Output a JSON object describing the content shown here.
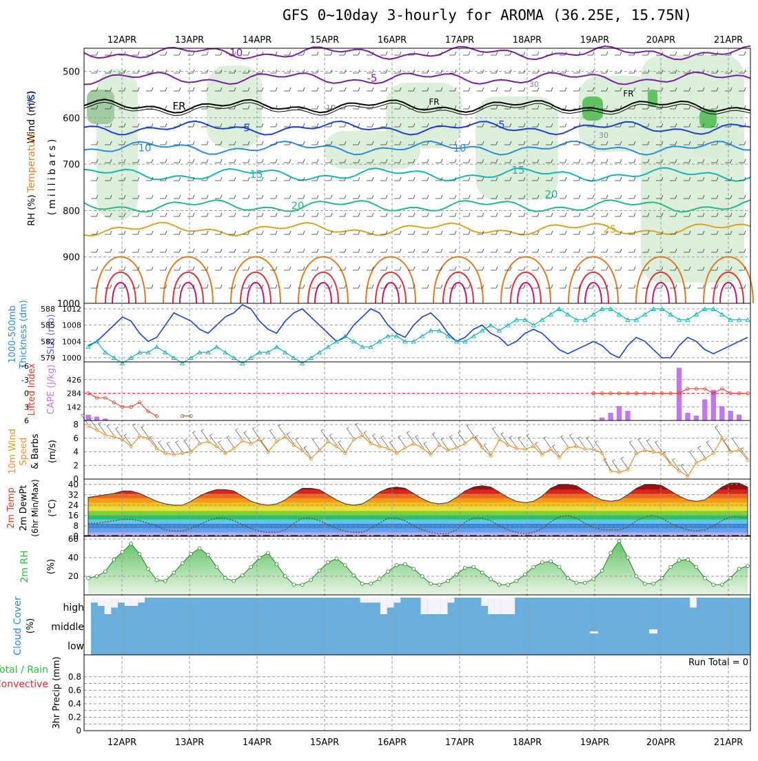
{
  "title": "GFS 0~10day 3-hourly for AROMA (36.25E, 15.75N)",
  "date_labels": [
    "12APR",
    "13APR",
    "14APR",
    "15APR",
    "16APR",
    "17APR",
    "18APR",
    "19APR",
    "20APR",
    "21APR"
  ],
  "colors": {
    "purple": "#7a1fa2",
    "black": "#000000",
    "blue_dark": "#1d3fd1",
    "blue_mid": "#2a8be0",
    "teal": "#12b5b5",
    "sea_green": "#1fb98a",
    "gold": "#d8a320",
    "orange": "#e07a20",
    "red": "#e03030",
    "crimson": "#d0105a",
    "rh_green": "#2bbf3b",
    "cloud_blue": "#6aaedb",
    "lifted_red": "#e03a2a",
    "cape_violet": "#c277f0",
    "wind_orange": "#e8922a",
    "grid": "#999999"
  },
  "chart_data": [
    {
      "type": "line",
      "panel": "upper_air",
      "title": "Temperature (°C) Wind (m/s) RH (%)",
      "ylabel": "(millibars)",
      "yaxis_ticks": [
        500,
        600,
        700,
        800,
        900,
        1000
      ],
      "ylim": [
        450,
        1000
      ],
      "axis_title_temperature": "Temperature",
      "axis_title_temperature_unit": "(°C)",
      "axis_title_wind": "Wind (m/s)",
      "axis_title_rh": "RH (%)",
      "axis_title_pressure": "(millibars)",
      "freezing_label": "FR",
      "rh_labels": [
        "10",
        "30",
        "30"
      ],
      "isotherms": [
        {
          "name": "-10",
          "label": "-10",
          "level_mb": 460
        },
        {
          "name": "-5",
          "label": "-5",
          "level_mb": 515
        },
        {
          "name": "FR",
          "label": "FR",
          "level_mb": 575
        },
        {
          "name": "5",
          "label": "5",
          "level_mb": 622
        },
        {
          "name": "10",
          "label": "10",
          "level_mb": 665
        },
        {
          "name": "15",
          "label": "15",
          "level_mb": 722
        },
        {
          "name": "20",
          "label": "20",
          "level_mb": 790
        },
        {
          "name": "25",
          "label": "25",
          "level_mb": 840
        }
      ]
    },
    {
      "type": "line",
      "panel": "thickness_slp",
      "ylabel_left": "1000-500mb Thickness (dm)",
      "ylabel_right": "SLP (mb)",
      "thickness_ticks": [
        579,
        582,
        585,
        588
      ],
      "slp_ticks": [
        1000,
        1004,
        1008,
        1012
      ],
      "slp_label": "SLP (mb)",
      "thickness_label_line1": "1000-500mb",
      "thickness_label_line2": "Thickness (dm)",
      "slp": [
        1003,
        1004,
        1006,
        1008,
        1010,
        1009,
        1006,
        1004,
        1005,
        1008,
        1011,
        1010,
        1009,
        1007,
        1006,
        1008,
        1010,
        1011,
        1013,
        1012,
        1009,
        1007,
        1006,
        1009,
        1011,
        1012,
        1010,
        1008,
        1006,
        1004,
        1005,
        1008,
        1010,
        1012,
        1011,
        1008,
        1006,
        1005,
        1008,
        1010,
        1011,
        1009,
        1006,
        1004,
        1005,
        1007,
        1008,
        1006,
        1005,
        1003,
        1004,
        1006,
        1007,
        1006,
        1004,
        1002,
        1001,
        1002,
        1003,
        1004,
        1003,
        1001,
        1000,
        1003,
        1005,
        1004,
        1002,
        1000,
        1000,
        1003,
        1005,
        1004,
        1002,
        1001,
        1002,
        1003,
        1004,
        1005
      ],
      "thickness": [
        581,
        582,
        580,
        579,
        578,
        579,
        580,
        580,
        581,
        580,
        579,
        578,
        579,
        580,
        580,
        581,
        580,
        579,
        578,
        579,
        580,
        580,
        581,
        580,
        579,
        578,
        579,
        580,
        581,
        582,
        583,
        582,
        581,
        581,
        582,
        583,
        583,
        582,
        582,
        583,
        584,
        584,
        583,
        582,
        582,
        583,
        584,
        585,
        584,
        585,
        586,
        586,
        585,
        586,
        587,
        588,
        587,
        586,
        586,
        587,
        588,
        588,
        587,
        586,
        586,
        587,
        588,
        588,
        587,
        586,
        586,
        587,
        588,
        588,
        587,
        586,
        586,
        586
      ]
    },
    {
      "type": "bar",
      "panel": "cape_lifted",
      "ylabel_left": "Lifted Index",
      "ylabel_right": "CAPE (J/kg)",
      "lifted_ticks": [
        "-6",
        "-3",
        "0",
        "3",
        "6"
      ],
      "cape_ticks": [
        142,
        284,
        426
      ],
      "lifted_label": "Lifted Index",
      "cape_label": "CAPE (J/kg)",
      "cape": [
        60,
        40,
        20,
        0,
        0,
        0,
        0,
        0,
        0,
        0,
        0,
        0,
        0,
        0,
        0,
        0,
        0,
        0,
        0,
        0,
        0,
        0,
        0,
        0,
        0,
        0,
        0,
        0,
        0,
        0,
        0,
        0,
        0,
        0,
        0,
        0,
        0,
        0,
        0,
        0,
        0,
        0,
        0,
        0,
        0,
        0,
        0,
        0,
        0,
        0,
        0,
        0,
        0,
        0,
        0,
        0,
        0,
        0,
        0,
        10,
        30,
        80,
        150,
        100,
        0,
        0,
        0,
        0,
        0,
        550,
        80,
        50,
        220,
        320,
        150,
        100,
        60,
        0
      ],
      "lifted": [
        0,
        1,
        1,
        2,
        3,
        3,
        2,
        4,
        5,
        6,
        6,
        5,
        5,
        6,
        6,
        6,
        6,
        6,
        6,
        6,
        6,
        6,
        6,
        6,
        6,
        6,
        6,
        6,
        6,
        6,
        6,
        6,
        6,
        6,
        6,
        6,
        6,
        6,
        6,
        6,
        6,
        6,
        6,
        6,
        6,
        6,
        6,
        6,
        6,
        6,
        6,
        6,
        6,
        6,
        6,
        6,
        6,
        6,
        6,
        0,
        0,
        0,
        0,
        0,
        0,
        0,
        0,
        0,
        0,
        0,
        -1,
        -1,
        -1,
        0,
        -1,
        0,
        0,
        0
      ]
    },
    {
      "type": "line",
      "panel": "wind10m",
      "ylabel": "10m Wind Speed & Barbs (m/s)",
      "ylabel_line1": "10m Wind",
      "ylabel_line2": "Speed",
      "ylabel_line3": "& Barbs",
      "ylabel_unit": "(m/s)",
      "ylim": [
        0,
        8
      ],
      "yticks": [
        0,
        2,
        4,
        6,
        8
      ],
      "speed": [
        7.8,
        7.2,
        6.5,
        6.2,
        5.8,
        4.8,
        6.3,
        6.0,
        4.5,
        3.8,
        3.6,
        3.8,
        4.0,
        5.2,
        5.5,
        4.8,
        3.8,
        4.5,
        5.6,
        5.2,
        5.8,
        4.0,
        5.5,
        6.2,
        5.0,
        4.2,
        3.0,
        4.2,
        5.5,
        4.8,
        3.8,
        5.8,
        6.4,
        5.2,
        4.8,
        4.5,
        3.8,
        4.6,
        5.2,
        4.6,
        3.6,
        5.0,
        4.2,
        4.6,
        5.2,
        6.2,
        4.6,
        3.4,
        5.8,
        5.0,
        4.5,
        4.4,
        4.8,
        3.6,
        4.4,
        3.2,
        4.6,
        4.8,
        4.4,
        4.4,
        3.8,
        1.2,
        1.0,
        1.4,
        3.8,
        4.2,
        4.0,
        3.8,
        2.2,
        1.2,
        0.4,
        2.4,
        3.0,
        3.8,
        6.0,
        4.0,
        4.3,
        2.8
      ]
    },
    {
      "type": "area",
      "panel": "temp2m",
      "ylabel": "2m Temp 2m DewPt (6hr Min/Max) (°C)",
      "ylabel_line1": "2m Temp",
      "ylabel_line2": "2m DewPt",
      "ylabel_line3": "(6hr Min/Max)",
      "ylabel_unit": "(°C)",
      "ylim": [
        0,
        42
      ],
      "yticks": [
        0,
        8,
        16,
        24,
        32,
        40
      ],
      "temp": [
        30,
        31,
        32,
        33,
        35,
        35,
        33,
        30,
        27,
        25,
        24,
        24,
        27,
        31,
        34,
        36,
        36,
        35,
        31,
        27,
        25,
        24,
        25,
        28,
        33,
        37,
        37,
        36,
        32,
        28,
        25,
        24,
        25,
        29,
        34,
        37,
        38,
        37,
        33,
        29,
        26,
        25,
        26,
        30,
        35,
        38,
        39,
        38,
        34,
        30,
        27,
        26,
        27,
        31,
        37,
        40,
        40,
        39,
        35,
        31,
        28,
        27,
        28,
        32,
        37,
        40,
        40,
        39,
        35,
        31,
        28,
        27,
        28,
        33,
        38,
        41,
        41,
        38
      ],
      "dewpt": [
        10,
        10,
        11,
        12,
        13,
        13,
        12,
        10,
        8,
        5,
        4,
        4,
        6,
        9,
        12,
        14,
        14,
        12,
        9,
        6,
        4,
        3,
        3,
        5,
        10,
        14,
        14,
        12,
        9,
        6,
        4,
        3,
        3,
        6,
        10,
        14,
        14,
        12,
        8,
        5,
        3,
        2,
        2,
        5,
        11,
        14,
        14,
        12,
        8,
        5,
        3,
        2,
        3,
        6,
        11,
        15,
        16,
        14,
        10,
        7,
        5,
        5,
        5,
        7,
        12,
        15,
        16,
        14,
        10,
        7,
        5,
        4,
        5,
        8,
        12,
        15,
        15,
        14
      ]
    },
    {
      "type": "area",
      "panel": "rh2m",
      "ylabel": "2m RH (%)",
      "ylabel_line1": "2m RH",
      "ylabel_unit": "(%)",
      "ylim": [
        0,
        60
      ],
      "yticks": [
        20,
        40,
        60
      ],
      "rh": [
        18,
        20,
        25,
        38,
        46,
        55,
        44,
        28,
        16,
        15,
        24,
        34,
        44,
        50,
        43,
        30,
        18,
        15,
        21,
        30,
        40,
        45,
        33,
        20,
        11,
        11,
        16,
        26,
        35,
        39,
        32,
        21,
        12,
        12,
        17,
        25,
        32,
        33,
        28,
        20,
        12,
        11,
        15,
        22,
        29,
        30,
        24,
        17,
        11,
        11,
        15,
        22,
        30,
        35,
        36,
        30,
        18,
        13,
        13,
        17,
        26,
        45,
        58,
        40,
        20,
        12,
        12,
        18,
        30,
        37,
        38,
        30,
        18,
        11,
        11,
        18,
        28,
        31
      ]
    },
    {
      "type": "bar",
      "panel": "cloud_cover",
      "ylabel": "Cloud Cover (%)",
      "ylabel_line1": "Cloud Cover",
      "ylabel_unit": "(%)",
      "levels": [
        "high",
        "middle",
        "low"
      ],
      "high_gap_pct": [
        30,
        50,
        100,
        60,
        30,
        50,
        50,
        30,
        0,
        0,
        0,
        0,
        0,
        0,
        0,
        0,
        0,
        0,
        0,
        0,
        0,
        0,
        0,
        0,
        0,
        0,
        0,
        0,
        0,
        0,
        0,
        0,
        0,
        0,
        0,
        0,
        0,
        0,
        0,
        0,
        30,
        30,
        30,
        100,
        60,
        30,
        0,
        0,
        0,
        100,
        100,
        100,
        100,
        30,
        0,
        0,
        0,
        0,
        50,
        100,
        100,
        100,
        100,
        0,
        0,
        0,
        0,
        0,
        0,
        0,
        0,
        0,
        0,
        0,
        0,
        0,
        0,
        0,
        0,
        0,
        0,
        0,
        0,
        0,
        0,
        0,
        0,
        0,
        0,
        60,
        0,
        0,
        0,
        0,
        0,
        0,
        0,
        0
      ]
    },
    {
      "type": "bar",
      "panel": "precip",
      "ylabel": "3hr Precip (mm)",
      "legend_total": "Total / Rain",
      "legend_convective": "Convective",
      "run_total": "Run Total = 0",
      "ylim": [
        0,
        0.9
      ],
      "yticks": [
        "0",
        "0.2",
        "0.4",
        "0.6",
        "0.8"
      ],
      "values": []
    }
  ]
}
